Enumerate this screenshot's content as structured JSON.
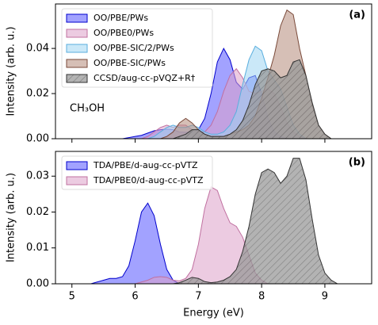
{
  "chart_data": [
    {
      "type": "area",
      "ylabel": "Intensity (arb. u.)",
      "panel_label": "(a)",
      "annotation": "CH₃OH",
      "legend": "upper left",
      "xlim": [
        4.74,
        9.74
      ],
      "ylim": [
        0,
        0.0597
      ],
      "xticks": [
        5,
        6,
        7,
        8,
        9
      ],
      "yticks": [
        {
          "value": 0,
          "label": "0.00"
        },
        {
          "value": 0.02,
          "label": "0.02"
        },
        {
          "value": 0.04,
          "label": "0.04"
        }
      ],
      "x": [
        5.3,
        5.4,
        5.5,
        5.6,
        5.7,
        5.8,
        5.9,
        6.0,
        6.1,
        6.2,
        6.3,
        6.4,
        6.5,
        6.6,
        6.7,
        6.8,
        6.9,
        7.0,
        7.1,
        7.2,
        7.3,
        7.4,
        7.5,
        7.6,
        7.7,
        7.8,
        7.9,
        8.0,
        8.1,
        8.2,
        8.3,
        8.4,
        8.5,
        8.6,
        8.7,
        8.8,
        8.9,
        9.0,
        9.1,
        9.2,
        9.3
      ],
      "series": [
        {
          "name": "OO/PBE/PWs",
          "color": "#5555ff",
          "edge": "#0000cc",
          "values": [
            0,
            0,
            0,
            0,
            0,
            0,
            0.0005,
            0.001,
            0.0015,
            0.0025,
            0.0035,
            0.004,
            0.0042,
            0.004,
            0.003,
            0.0028,
            0.003,
            0.004,
            0.009,
            0.02,
            0.034,
            0.04,
            0.035,
            0.025,
            0.022,
            0.027,
            0.028,
            0.02,
            0.009,
            0.003,
            0.001,
            0,
            0,
            0,
            0,
            0,
            0,
            0,
            0,
            0,
            0
          ]
        },
        {
          "name": "OO/PBE0/PWs",
          "color": "#dda0c8",
          "edge": "#c070a0",
          "values": [
            0,
            0,
            0,
            0,
            0,
            0,
            0,
            0,
            0,
            0.001,
            0.003,
            0.005,
            0.006,
            0.005,
            0.006,
            0.006,
            0.004,
            0.003,
            0.003,
            0.006,
            0.012,
            0.021,
            0.028,
            0.031,
            0.027,
            0.021,
            0.02,
            0.021,
            0.022,
            0.02,
            0.014,
            0.007,
            0.003,
            0.001,
            0,
            0,
            0,
            0,
            0,
            0,
            0
          ]
        },
        {
          "name": "OO/PBE-SIC/2/PWs",
          "color": "#9fd6f2",
          "edge": "#5aaede",
          "values": [
            0,
            0,
            0,
            0,
            0,
            0,
            0,
            0,
            0,
            0,
            0.001,
            0.003,
            0.005,
            0.006,
            0.005,
            0.005,
            0.006,
            0.005,
            0.003,
            0.002,
            0.002,
            0.003,
            0.006,
            0.012,
            0.024,
            0.035,
            0.041,
            0.039,
            0.03,
            0.026,
            0.022,
            0.014,
            0.006,
            0.002,
            0,
            0,
            0,
            0,
            0,
            0,
            0
          ]
        },
        {
          "name": "OO/PBE-SIC/PWs",
          "color": "#b48a7a",
          "edge": "#7a4a3a",
          "values": [
            0,
            0,
            0,
            0,
            0,
            0,
            0,
            0,
            0,
            0,
            0,
            0,
            0.001,
            0.003,
            0.007,
            0.009,
            0.007,
            0.004,
            0.002,
            0.001,
            0.001,
            0.001,
            0.002,
            0.003,
            0.004,
            0.006,
            0.01,
            0.018,
            0.027,
            0.037,
            0.05,
            0.057,
            0.055,
            0.04,
            0.028,
            0.015,
            0.006,
            0.002,
            0,
            0,
            0
          ]
        },
        {
          "name": "CCSD/aug-cc-pVQZ+R†",
          "color": "#888888",
          "edge": "#333333",
          "hatch": "///",
          "values": [
            0,
            0,
            0,
            0,
            0,
            0,
            0,
            0,
            0,
            0,
            0,
            0,
            0,
            0,
            0.001,
            0.002,
            0.004,
            0.004,
            0.002,
            0.001,
            0.001,
            0.001,
            0.002,
            0.004,
            0.008,
            0.015,
            0.024,
            0.03,
            0.031,
            0.03,
            0.027,
            0.028,
            0.034,
            0.035,
            0.028,
            0.016,
            0.006,
            0.002,
            0,
            0,
            0
          ]
        }
      ]
    },
    {
      "type": "area",
      "ylabel": "Intensity (arb. u.)",
      "xlabel": "Energy (eV)",
      "panel_label": "(b)",
      "legend": "upper left",
      "xlim": [
        4.74,
        9.74
      ],
      "ylim": [
        0,
        0.0369
      ],
      "xticks": [
        5,
        6,
        7,
        8,
        9
      ],
      "yticks": [
        {
          "value": 0,
          "label": "0.00"
        },
        {
          "value": 0.01,
          "label": "0.01"
        },
        {
          "value": 0.02,
          "label": "0.02"
        },
        {
          "value": 0.03,
          "label": "0.03"
        }
      ],
      "x": [
        5.3,
        5.4,
        5.5,
        5.6,
        5.7,
        5.8,
        5.9,
        6.0,
        6.1,
        6.2,
        6.3,
        6.4,
        6.5,
        6.6,
        6.7,
        6.8,
        6.9,
        7.0,
        7.1,
        7.2,
        7.3,
        7.4,
        7.5,
        7.6,
        7.7,
        7.8,
        7.9,
        8.0,
        8.1,
        8.2,
        8.3,
        8.4,
        8.5,
        8.6,
        8.7,
        8.8,
        8.9,
        9.0,
        9.1,
        9.2,
        9.3
      ],
      "series": [
        {
          "name": "TDA/PBE/d-aug-cc-pVTZ",
          "color": "#5555ff",
          "edge": "#0000cc",
          "values": [
            0,
            0.0005,
            0.001,
            0.0015,
            0.0015,
            0.002,
            0.005,
            0.012,
            0.02,
            0.0225,
            0.019,
            0.011,
            0.004,
            0.001,
            0,
            0,
            0,
            0,
            0,
            0,
            0,
            0,
            0,
            0,
            0,
            0,
            0,
            0,
            0,
            0,
            0,
            0,
            0,
            0,
            0,
            0,
            0,
            0,
            0,
            0,
            0
          ]
        },
        {
          "name": "TDA/PBE0/d-aug-cc-pVTZ",
          "color": "#dda0c8",
          "edge": "#c070a0",
          "values": [
            0,
            0,
            0,
            0,
            0,
            0,
            0,
            0,
            0.0005,
            0.001,
            0.0018,
            0.002,
            0.0018,
            0.001,
            0.0008,
            0.0015,
            0.004,
            0.011,
            0.021,
            0.027,
            0.026,
            0.021,
            0.017,
            0.016,
            0.013,
            0.008,
            0.003,
            0.001,
            0,
            0,
            0,
            0,
            0,
            0,
            0,
            0,
            0,
            0,
            0,
            0,
            0
          ]
        },
        {
          "color": "#888888",
          "edge": "#333333",
          "hatch": "///",
          "values": [
            0,
            0,
            0,
            0,
            0,
            0,
            0,
            0,
            0,
            0,
            0,
            0,
            0,
            0,
            0.0003,
            0.001,
            0.0018,
            0.0015,
            0.0006,
            0.0003,
            0.0005,
            0.001,
            0.002,
            0.004,
            0.009,
            0.016,
            0.025,
            0.031,
            0.032,
            0.031,
            0.028,
            0.03,
            0.035,
            0.035,
            0.029,
            0.018,
            0.008,
            0.003,
            0.001,
            0,
            0
          ]
        }
      ]
    }
  ]
}
